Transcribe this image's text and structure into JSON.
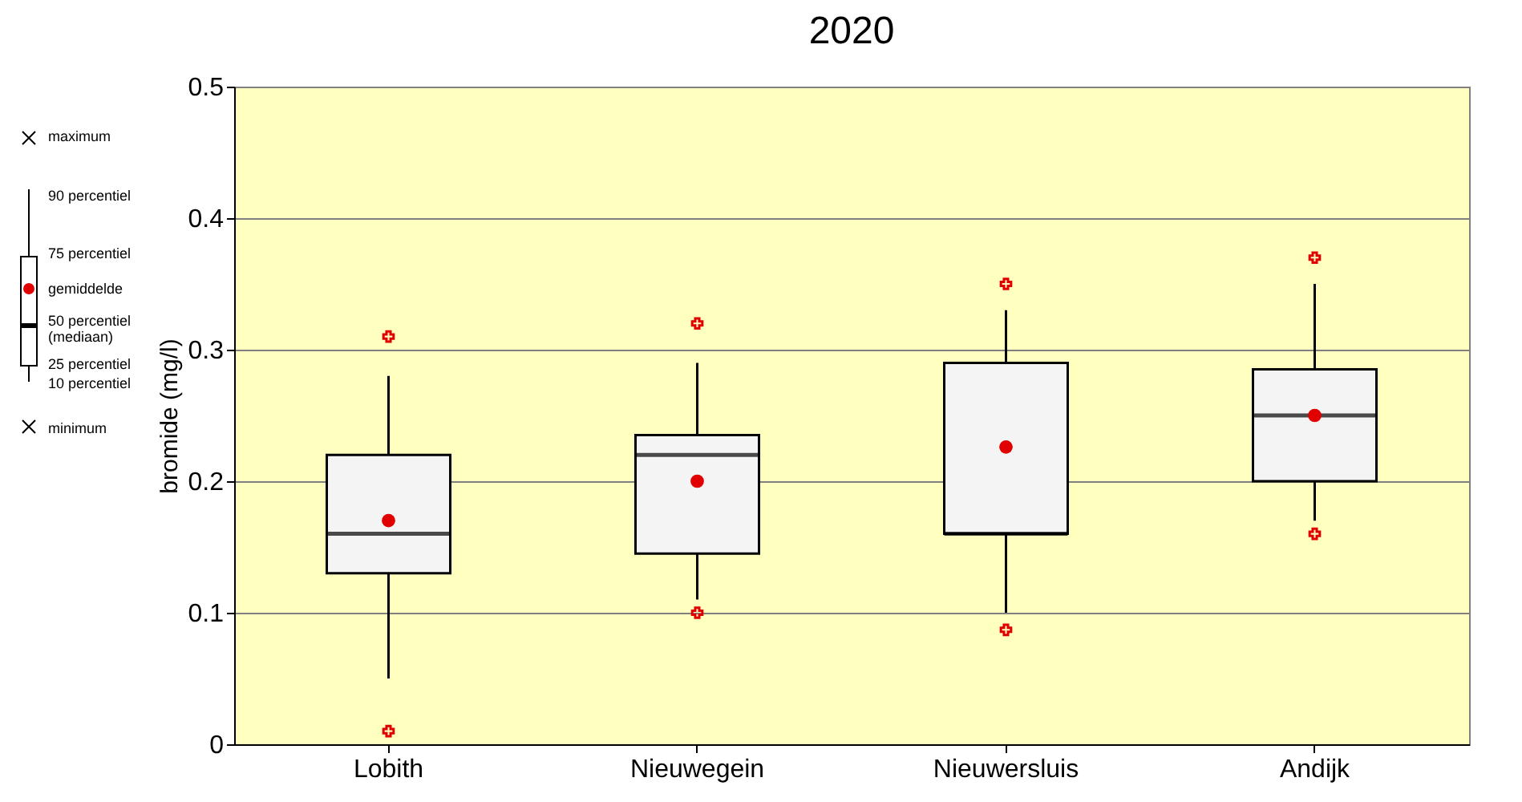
{
  "chart_data": {
    "type": "box",
    "title": "2020",
    "ylabel": "bromide (mg/l)",
    "categories": [
      "Lobith",
      "Nieuwegein",
      "Nieuwersluis",
      "Andijk"
    ],
    "boxes": [
      {
        "low": 0.05,
        "q1": 0.13,
        "median": 0.16,
        "q3": 0.22,
        "high": 0.28,
        "mean": 0.17,
        "outliers": [
          0.01,
          0.31
        ]
      },
      {
        "low": 0.11,
        "q1": 0.145,
        "median": 0.22,
        "q3": 0.235,
        "high": 0.29,
        "mean": 0.2,
        "outliers": [
          0.1,
          0.32
        ]
      },
      {
        "low": 0.1,
        "q1": 0.16,
        "median": 0.16,
        "q3": 0.29,
        "high": 0.33,
        "mean": 0.226,
        "outliers": [
          0.087,
          0.35
        ]
      },
      {
        "low": 0.17,
        "q1": 0.2,
        "median": 0.25,
        "q3": 0.285,
        "high": 0.35,
        "mean": 0.25,
        "outliers": [
          0.16,
          0.37
        ]
      }
    ],
    "ylim": [
      0,
      0.5
    ],
    "yticks": [
      {
        "value": 0,
        "label": "0"
      },
      {
        "value": 0.1,
        "label": "0.1"
      },
      {
        "value": 0.2,
        "label": "0.2"
      },
      {
        "value": 0.3,
        "label": "0.3"
      },
      {
        "value": 0.4,
        "label": "0.4"
      },
      {
        "value": 0.5,
        "label": "0.5"
      }
    ],
    "grid": "y",
    "annotations": [
      "maximum",
      "90 percentiel",
      "75 percentiel",
      "gemiddelde",
      "50 percentiel (mediaan)",
      "25 percentiel",
      "10 percentiel",
      "minimum"
    ]
  }
}
